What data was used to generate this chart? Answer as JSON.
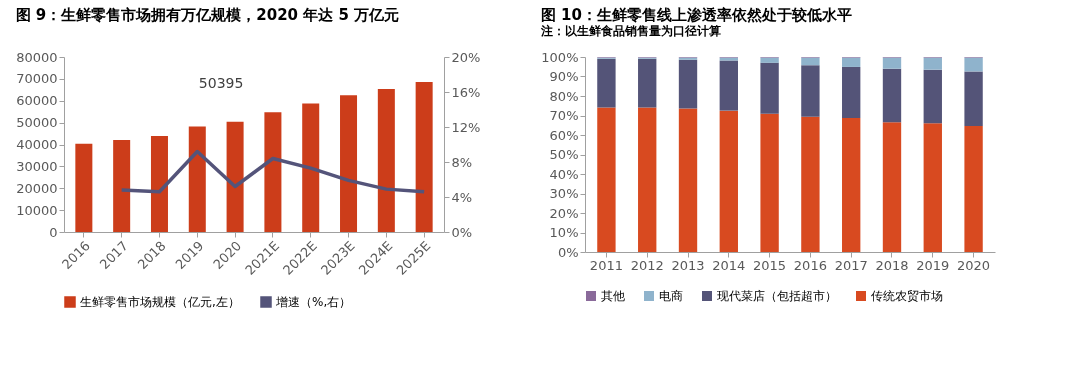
{
  "chart_data": [
    {
      "type": "bar",
      "title": "图 9：生鲜零售市场拥有万亿规模，2020 年达 5 万亿元",
      "categories": [
        "2016",
        "2017",
        "2018",
        "2019",
        "2020",
        "2021E",
        "2022E",
        "2023E",
        "2024E",
        "2025E"
      ],
      "series": [
        {
          "name": "生鲜零售市场规模（亿元,左）",
          "color": "#cc3d1a",
          "values": [
            40300,
            42100,
            43900,
            48200,
            50395,
            54800,
            58800,
            62500,
            65400,
            68600
          ],
          "value_labels": [
            null,
            null,
            null,
            null,
            "50395",
            null,
            null,
            null,
            null,
            null
          ]
        },
        {
          "name": "增速（%,右）",
          "type": "line",
          "axis": "y2",
          "color": "#54547a",
          "values": [
            null,
            4.8,
            4.6,
            9.2,
            5.2,
            8.4,
            7.3,
            5.9,
            4.9,
            4.6
          ]
        }
      ],
      "ylim": [
        0,
        80000
      ],
      "yticks": [
        0,
        10000,
        20000,
        30000,
        40000,
        50000,
        60000,
        70000,
        80000
      ],
      "y2lim": [
        0,
        20
      ],
      "y2ticks": [
        {
          "value": 0,
          "label": "0%"
        },
        {
          "value": 4,
          "label": "4%"
        },
        {
          "value": 8,
          "label": "8%"
        },
        {
          "value": 12,
          "label": "12%"
        },
        {
          "value": 16,
          "label": "16%"
        },
        {
          "value": 20,
          "label": "20%"
        }
      ],
      "legend": "bottom",
      "grid": false
    },
    {
      "type": "bar",
      "stacked": true,
      "title": "图 10：生鲜零售线上渗透率依然处于较低水平",
      "categories": [
        "2011",
        "2012",
        "2013",
        "2014",
        "2015",
        "2016",
        "2017",
        "2018",
        "2019",
        "2020"
      ],
      "series": [
        {
          "name": "传统农贸市场",
          "color": "#d84a20",
          "values": [
            74.1,
            74.1,
            73.6,
            72.5,
            70.9,
            69.4,
            68.7,
            66.5,
            66.0,
            64.6
          ]
        },
        {
          "name": "现代菜店（包括超市）",
          "color": "#545478",
          "values": [
            25.0,
            25.0,
            25.0,
            25.7,
            26.1,
            26.4,
            26.2,
            27.5,
            27.5,
            28.0
          ]
        },
        {
          "name": "电商",
          "color": "#8fb3cc",
          "values": [
            0.6,
            0.6,
            1.1,
            1.5,
            2.7,
            3.9,
            4.8,
            5.7,
            6.2,
            7.1
          ]
        },
        {
          "name": "其他",
          "color": "#8a6a9a",
          "values": [
            0.3,
            0.3,
            0.3,
            0.3,
            0.3,
            0.3,
            0.3,
            0.3,
            0.3,
            0.3
          ]
        }
      ],
      "ylim": [
        0,
        100
      ],
      "yticks": [
        {
          "value": 0,
          "label": "0%"
        },
        {
          "value": 10,
          "label": "10%"
        },
        {
          "value": 20,
          "label": "20%"
        },
        {
          "value": 30,
          "label": "30%"
        },
        {
          "value": 40,
          "label": "40%"
        },
        {
          "value": 50,
          "label": "50%"
        },
        {
          "value": 60,
          "label": "60%"
        },
        {
          "value": 70,
          "label": "70%"
        },
        {
          "value": 80,
          "label": "80%"
        },
        {
          "value": 90,
          "label": "90%"
        },
        {
          "value": 100,
          "label": "100%"
        }
      ],
      "legend": "bottom",
      "grid": false,
      "annotations": [
        "注：以生鲜食品销售量为口径计算"
      ]
    }
  ]
}
